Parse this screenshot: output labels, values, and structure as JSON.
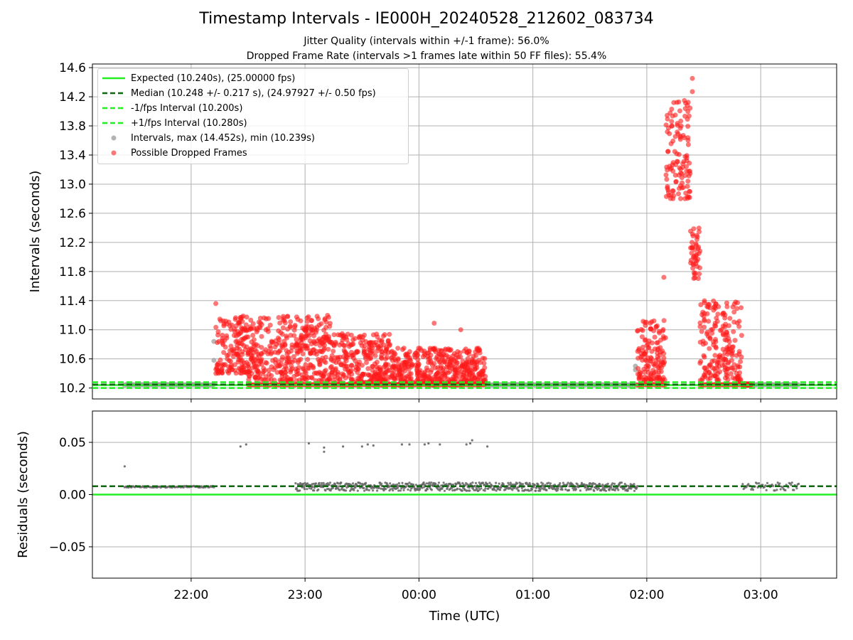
{
  "title": "Timestamp Intervals - IE000H_20240528_212602_083734",
  "subtitle_1": "Jitter Quality (intervals within +/-1 frame): 56.0%",
  "subtitle_2": "Dropped Frame Rate (intervals >1 frames late within 50 FF files): 55.4%",
  "colors": {
    "expected": "#22ee22",
    "median": "#116611",
    "bounds": "#22ee22",
    "intervals": "#999999",
    "dropped": "#ff1a1a",
    "residual_points": "#666666",
    "grid": "#b0b0b0"
  },
  "chart_data": [
    {
      "type": "scatter",
      "name": "intervals",
      "ylabel": "Intervals (seconds)",
      "xlabel": "",
      "y_ticks": [
        "10.2",
        "10.6",
        "11.0",
        "11.4",
        "11.8",
        "12.2",
        "12.6",
        "13.0",
        "13.4",
        "13.8",
        "14.2",
        "14.6"
      ],
      "ylim": [
        10.05,
        14.65
      ],
      "grid": true,
      "legend_placement": "top-left",
      "reference_lines": {
        "expected": 10.24,
        "median": 10.248,
        "minus_1_fps": 10.2,
        "plus_1_fps": 10.28
      },
      "legend": [
        {
          "label": "Expected (10.240s), (25.00000 fps)",
          "style": "solid-line",
          "color": "#22ee22"
        },
        {
          "label": "Median (10.248 +/- 0.217 s), (24.97927 +/- 0.50 fps)",
          "style": "dashed-line",
          "color": "#116611"
        },
        {
          "label": "-1/fps Interval (10.200s)",
          "style": "dashed-line",
          "color": "#22ee22"
        },
        {
          "label": "+1/fps Interval (10.280s)",
          "style": "dashed-line",
          "color": "#22ee22"
        },
        {
          "label": "Intervals, max (14.452s), min (10.239s)",
          "style": "dot",
          "color": "#999999"
        },
        {
          "label": "Possible Dropped Frames",
          "style": "dot",
          "color": "#ff1a1a"
        }
      ],
      "series": [
        {
          "name": "Intervals, max (14.452s), min (10.239s)",
          "segments": [
            {
              "from": "21:25",
              "to": "22:12",
              "baseline": 10.245
            },
            {
              "from": "00:35",
              "to": "01:55",
              "baseline": 10.245
            },
            {
              "from": "02:50",
              "to": "03:20",
              "baseline": 10.245
            }
          ],
          "notable_points": [
            {
              "x": "22:12",
              "y": 10.84
            },
            {
              "x": "22:12",
              "y": 10.58
            },
            {
              "x": "00:35",
              "y": 10.31
            },
            {
              "x": "01:54",
              "y": 10.5
            },
            {
              "x": "01:54",
              "y": 10.45
            }
          ]
        },
        {
          "name": "Possible Dropped Frames",
          "envelopes": [
            {
              "from": "22:13",
              "to": "22:30",
              "y_low": 10.4,
              "y_high": 11.2
            },
            {
              "from": "22:30",
              "to": "23:15",
              "y_low": 10.3,
              "y_high": 11.2
            },
            {
              "from": "23:15",
              "to": "23:45",
              "y_low": 10.25,
              "y_high": 10.95
            },
            {
              "from": "23:45",
              "to": "00:35",
              "y_low": 10.24,
              "y_high": 10.75
            },
            {
              "from": "01:55",
              "to": "02:10",
              "y_low": 10.3,
              "y_high": 11.15
            },
            {
              "from": "02:10",
              "to": "02:23",
              "y_low": 12.8,
              "y_high": 14.15
            },
            {
              "from": "02:23",
              "to": "02:28",
              "y_low": 11.7,
              "y_high": 12.4
            },
            {
              "from": "02:28",
              "to": "02:50",
              "y_low": 10.3,
              "y_high": 11.4
            },
            {
              "from": "02:50",
              "to": "02:55",
              "y_low": 10.24,
              "y_high": 10.26
            }
          ],
          "notable_points": [
            {
              "x": "22:13",
              "y": 11.36
            },
            {
              "x": "02:24",
              "y": 14.452
            },
            {
              "x": "02:24",
              "y": 14.27
            },
            {
              "x": "02:09",
              "y": 11.72
            },
            {
              "x": "00:08",
              "y": 11.09
            },
            {
              "x": "00:22",
              "y": 11.0
            }
          ]
        }
      ]
    },
    {
      "type": "scatter",
      "name": "residuals",
      "ylabel": "Residuals (seconds)",
      "xlabel": "Time (UTC)",
      "x_ticks": [
        "22:00",
        "23:00",
        "00:00",
        "01:00",
        "02:00",
        "03:00"
      ],
      "y_ticks": [
        "0.00",
        "0.05",
        "−0.05"
      ],
      "y_tick_values": [
        0.0,
        0.05,
        -0.05
      ],
      "ylim": [
        -0.08,
        0.08
      ],
      "grid": true,
      "reference_lines": {
        "zero": 0.0,
        "median": 0.008
      },
      "series": [
        {
          "name": "residuals",
          "segments": [
            {
              "from": "21:25",
              "to": "22:12",
              "baseline": 0.0075
            },
            {
              "from": "22:55",
              "to": "01:55",
              "baseline": 0.0075
            },
            {
              "from": "02:50",
              "to": "03:20",
              "baseline": 0.0075
            }
          ],
          "notable_points": [
            {
              "x": "21:25",
              "y": 0.027
            },
            {
              "x": "22:26",
              "y": 0.046
            },
            {
              "x": "22:29",
              "y": 0.048
            },
            {
              "x": "23:02",
              "y": 0.049
            },
            {
              "x": "23:10",
              "y": 0.045
            },
            {
              "x": "23:10",
              "y": 0.041
            },
            {
              "x": "23:20",
              "y": 0.046
            },
            {
              "x": "23:30",
              "y": 0.046
            },
            {
              "x": "23:33",
              "y": 0.048
            },
            {
              "x": "23:36",
              "y": 0.047
            },
            {
              "x": "23:51",
              "y": 0.048
            },
            {
              "x": "23:55",
              "y": 0.048
            },
            {
              "x": "00:03",
              "y": 0.048
            },
            {
              "x": "00:05",
              "y": 0.049
            },
            {
              "x": "00:11",
              "y": 0.048
            },
            {
              "x": "00:25",
              "y": 0.048
            },
            {
              "x": "00:27",
              "y": 0.049
            },
            {
              "x": "00:28",
              "y": 0.052
            },
            {
              "x": "00:36",
              "y": 0.046
            }
          ]
        }
      ]
    }
  ]
}
